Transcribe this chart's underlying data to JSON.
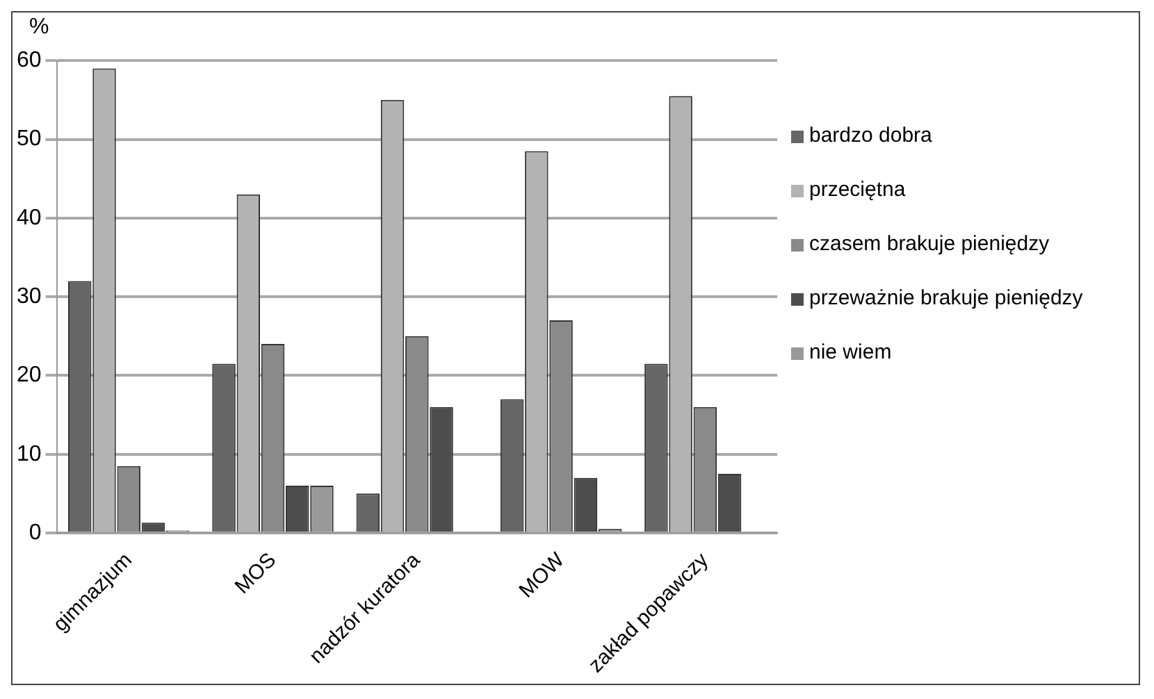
{
  "chart_data": {
    "type": "bar",
    "ylabel": "%",
    "categories": [
      "gimnazjum",
      "MOS",
      "nadzór kuratora",
      "MOW",
      "zakład popawczy"
    ],
    "series": [
      {
        "name": "bardzo dobra",
        "color": "#666666",
        "values": [
          32,
          21.5,
          5,
          17,
          21.5
        ]
      },
      {
        "name": "przeciętna",
        "color": "#b3b3b3",
        "values": [
          59,
          43,
          55,
          48.5,
          55.5
        ]
      },
      {
        "name": "czasem brakuje pieniędzy",
        "color": "#8a8a8a",
        "values": [
          8.5,
          24,
          25,
          27,
          16
        ]
      },
      {
        "name": "przeważnie brakuje pieniędzy",
        "color": "#4d4d4d",
        "values": [
          1.3,
          6,
          16,
          7,
          7.5
        ]
      },
      {
        "name": "nie wiem",
        "color": "#999999",
        "values": [
          0.3,
          6,
          0,
          0.5,
          0
        ]
      }
    ],
    "ylim": [
      0,
      60
    ],
    "yticks": [
      0,
      10,
      20,
      30,
      40,
      50,
      60
    ],
    "grid": "y",
    "legend": "right"
  }
}
